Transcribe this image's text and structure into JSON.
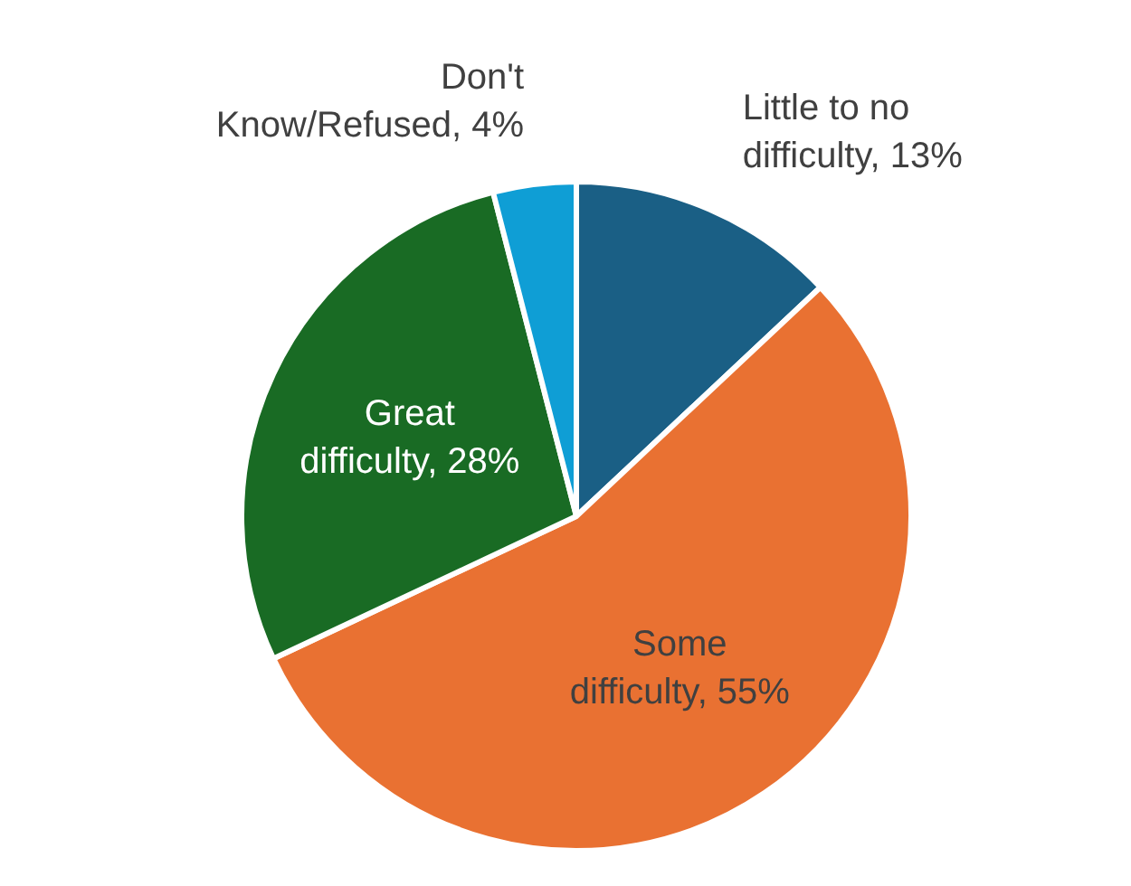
{
  "chart_data": {
    "type": "pie",
    "categories": [
      "Little to no difficulty",
      "Some difficulty",
      "Great difficulty",
      "Don't Know/Refused"
    ],
    "values": [
      13,
      55,
      28,
      4
    ],
    "value_labels": [
      "13%",
      "55%",
      "28%",
      "4%"
    ],
    "colors": [
      "#1a5f85",
      "#e97132",
      "#196b24",
      "#0f9ed5"
    ]
  }
}
